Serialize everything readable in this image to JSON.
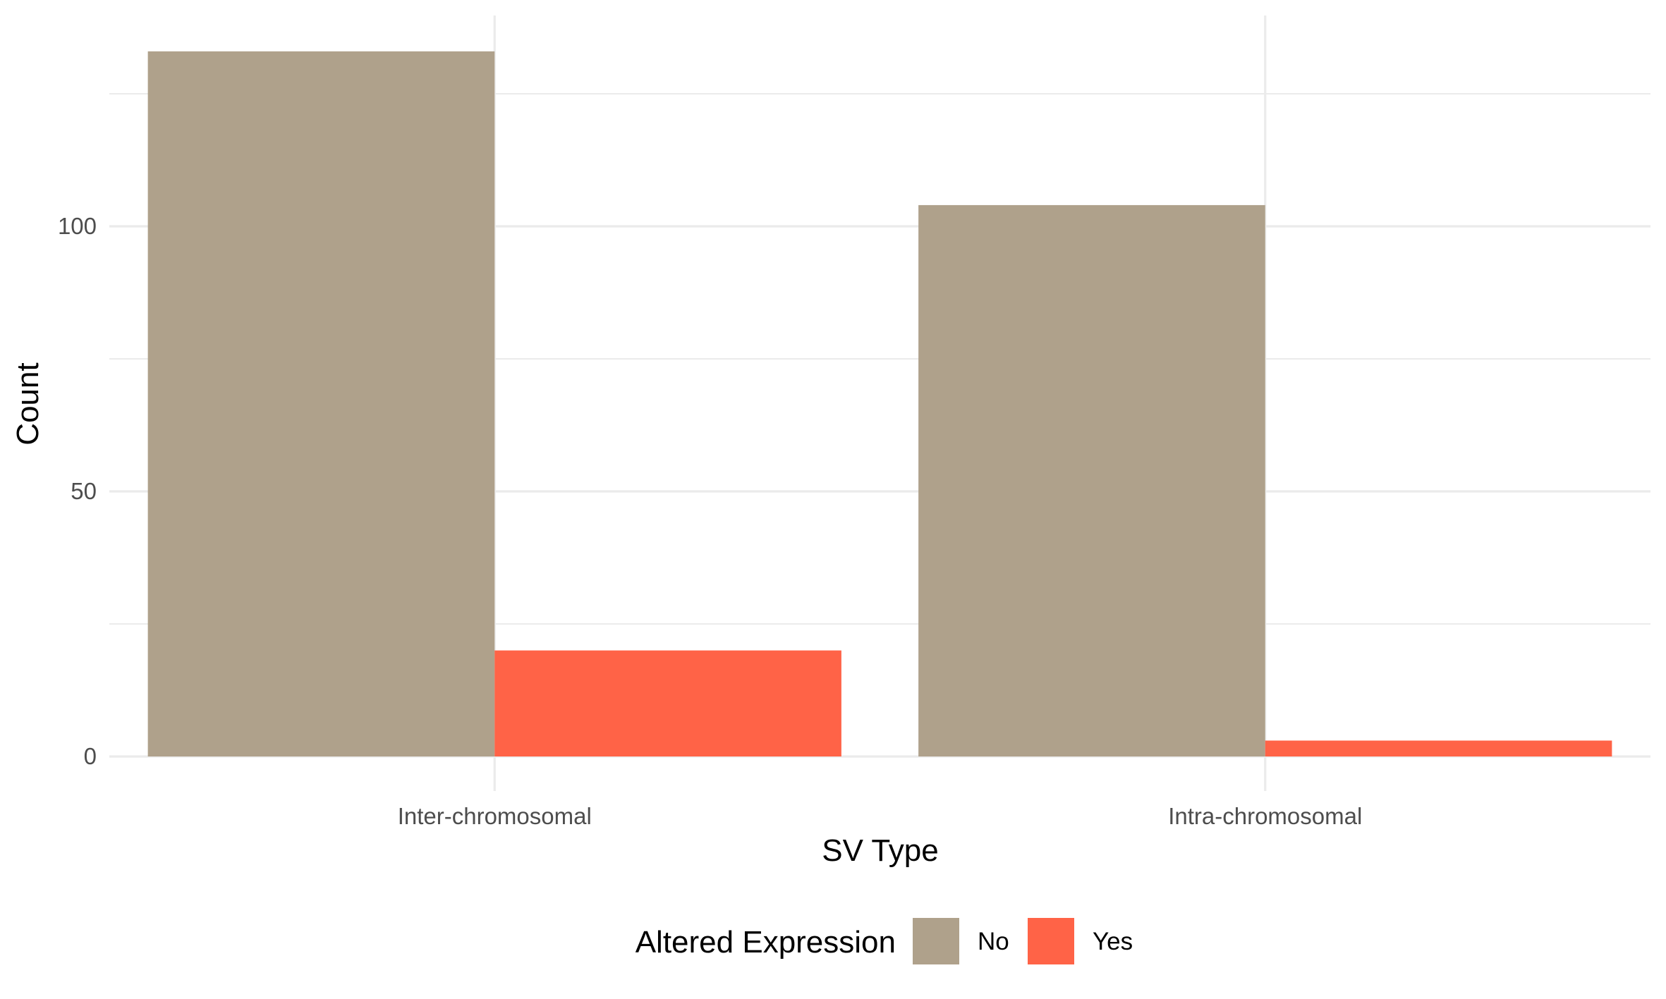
{
  "chart_data": {
    "type": "bar",
    "categories": [
      "Inter-chromosomal",
      "Intra-chromosomal"
    ],
    "series": [
      {
        "name": "No",
        "values": [
          133,
          104
        ],
        "color": "#AFA18B"
      },
      {
        "name": "Yes",
        "values": [
          20,
          3
        ],
        "color": "#FF6347"
      }
    ],
    "title": "",
    "xlabel": "SV Type",
    "ylabel": "Count",
    "ylim": [
      -7,
      140
    ],
    "yticks": [
      0,
      50,
      100
    ],
    "yticks_minor": [
      25,
      75,
      125
    ],
    "grid": true,
    "legend": {
      "title": "Altered Expression",
      "position": "bottom",
      "entries": [
        "No",
        "Yes"
      ]
    }
  }
}
